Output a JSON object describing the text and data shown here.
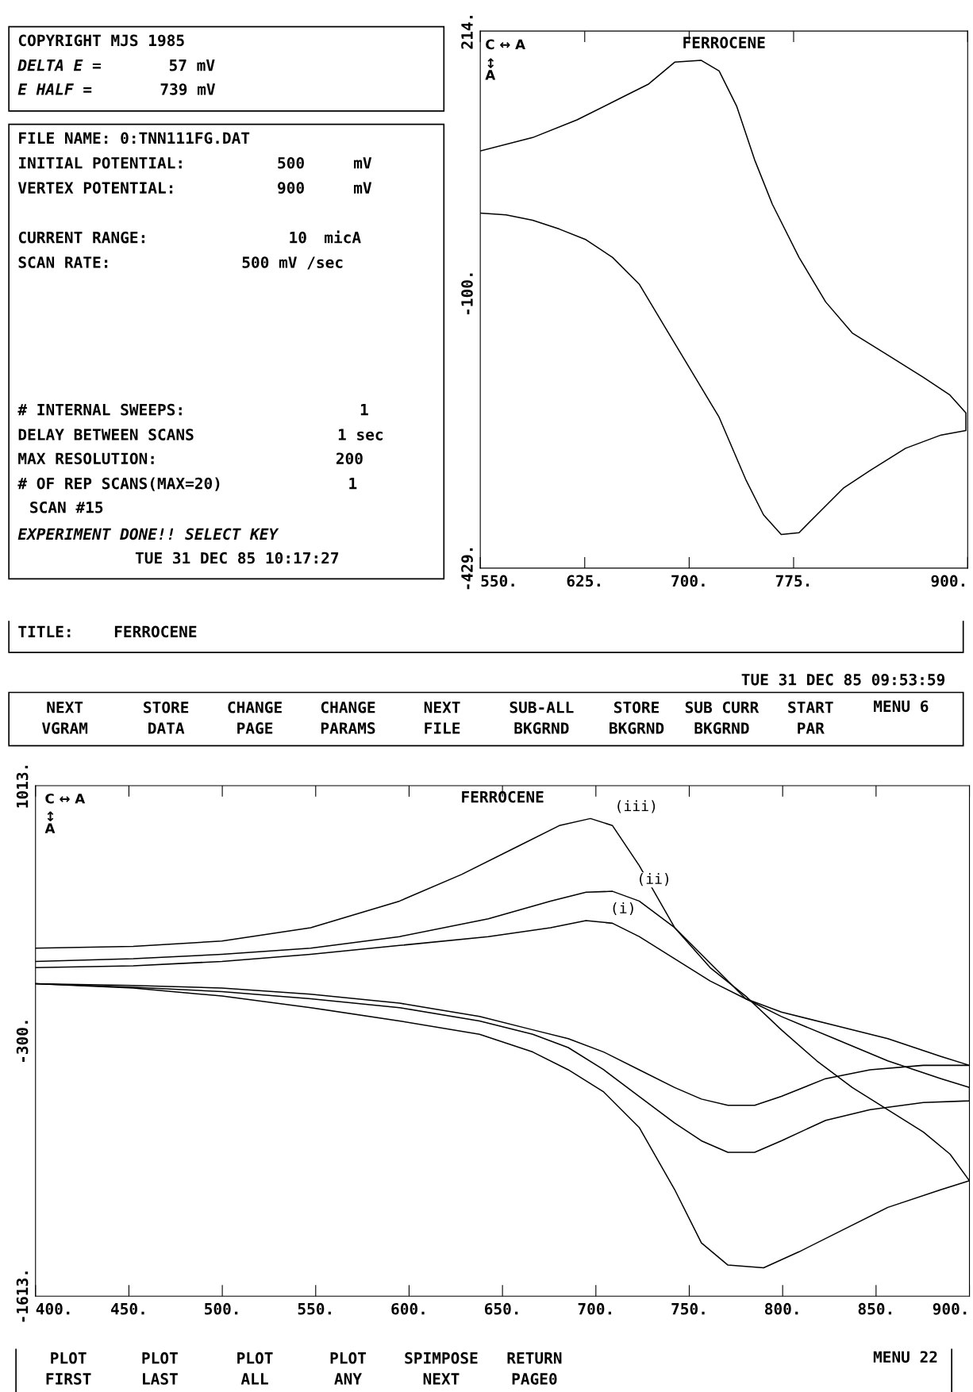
{
  "chart_data": [
    {
      "type": "other",
      "annotations": [
        "COPYRIGHT MJS 1985",
        "DELTA E =",
        "57 mV",
        "E HALF =",
        "739 mV"
      ]
    },
    {
      "type": "line",
      "title": "FERROCENE",
      "annotations": [
        "C ↔ A",
        "↕\nA"
      ],
      "xlim": [
        550,
        900
      ],
      "ylim": [
        -429,
        214
      ],
      "xticks": [
        {
          "value": 550,
          "label": "550."
        },
        {
          "value": 625,
          "label": "625."
        },
        {
          "value": 700,
          "label": "700."
        },
        {
          "value": 775,
          "label": "775."
        },
        {
          "value": 900,
          "label": "900."
        }
      ],
      "yticks": [
        {
          "value": -429,
          "label": "-429."
        },
        {
          "value": -100,
          "label": "-100."
        },
        {
          "value": 214,
          "label": "214."
        }
      ],
      "series": [
        {
          "color": "#000000",
          "x": [
            550,
            587.6,
            619.5,
            651.4,
            670.5,
            689.6,
            708.7,
            721.5,
            734.2,
            747,
            759.7,
            778.9,
            798,
            817.1,
            842.6,
            868.1,
            887.2,
            898.7,
            898.7,
            880.9,
            855.4,
            829.9,
            810.7,
            791.6,
            778.9,
            766.1,
            753.4,
            740.6,
            721.5,
            702.4,
            683.2,
            664.1,
            645,
            625.9,
            606.7,
            587.6,
            568.5,
            550
          ],
          "values": [
            70.5,
            86.5,
            107.7,
            134.3,
            150.2,
            176.8,
            178.9,
            166.2,
            123.7,
            59.9,
            6.8,
            -57,
            -110.2,
            -147.4,
            -173.9,
            -200.5,
            -221.7,
            -243,
            -264.3,
            -269.6,
            -285.5,
            -312.1,
            -333.3,
            -365.2,
            -386.5,
            -388.6,
            -365.2,
            -322.7,
            -248.3,
            -195.2,
            -142,
            -88.9,
            -57,
            -35.8,
            -23,
            -12.4,
            -6,
            -3.9
          ]
        }
      ]
    },
    {
      "type": "other",
      "annotations": [
        "FILE NAME: 0:TNN111FG.DAT",
        "INITIAL POTENTIAL:",
        "500",
        "mV",
        "VERTEX POTENTIAL:",
        "900",
        "mV",
        "CURRENT RANGE:",
        "10",
        "micA",
        "SCAN RATE:",
        "500 mV /sec",
        "# INTERNAL SWEEPS:",
        "1",
        "DELAY BETWEEN SCANS",
        "1 sec",
        "MAX RESOLUTION:",
        "200",
        "# OF REP SCANS(MAX=20)",
        "1",
        "SCAN #15",
        "EXPERIMENT DONE!! SELECT KEY",
        "TUE 31 DEC 85 10:17:27"
      ]
    },
    {
      "type": "other",
      "annotations": [
        "TITLE:",
        "FERROCENE"
      ]
    },
    {
      "type": "other",
      "annotations": [
        "TUE 31 DEC 85 09:53:59",
        "NEXT\nVGRAM",
        "STORE\nDATA",
        "CHANGE\nPAGE",
        "CHANGE\nPARAMS",
        "NEXT\nFILE",
        "SUB-ALL\nBKGRND",
        "STORE\nBKGRND",
        "SUB CURR\nBKGRND",
        "START\nPAR",
        "MENU 6"
      ]
    },
    {
      "type": "line",
      "title": "FERROCENE",
      "annotations": [
        "C ↔ A",
        "↕\nA"
      ],
      "xlim": [
        400,
        900
      ],
      "ylim": [
        -1613,
        1013
      ],
      "xticks": [
        {
          "value": 400,
          "label": "400."
        },
        {
          "value": 450,
          "label": "450."
        },
        {
          "value": 500,
          "label": "500."
        },
        {
          "value": 550,
          "label": "550."
        },
        {
          "value": 600,
          "label": "600."
        },
        {
          "value": 650,
          "label": "650."
        },
        {
          "value": 700,
          "label": "700."
        },
        {
          "value": 750,
          "label": "750."
        },
        {
          "value": 800,
          "label": "800."
        },
        {
          "value": 850,
          "label": "850."
        },
        {
          "value": 900,
          "label": "900."
        }
      ],
      "yticks": [
        {
          "value": -1613,
          "label": "-1613."
        },
        {
          "value": -300,
          "label": "-300."
        },
        {
          "value": 1013,
          "label": "1013."
        }
      ],
      "series": [
        {
          "name": "(iii)",
          "color": "#000000",
          "x": [
            400,
            452.3,
            499.8,
            547.3,
            594.9,
            628.1,
            656.7,
            680.4,
            697.1,
            708.9,
            723.2,
            742.2,
            761.2,
            780.2,
            799.3,
            818.3,
            837.3,
            856.3,
            875.3,
            889.6,
            900,
            884.8,
            856.3,
            832.5,
            808.8,
            789.8,
            770.7,
            756.5,
            742.2,
            723.2,
            704.2,
            685.2,
            666.2,
            637.7,
            594.9,
            547.3,
            499.8,
            452.3,
            400
          ],
          "values": [
            177.3,
            186.4,
            213.8,
            282.3,
            419.3,
            556.3,
            693.3,
            807.5,
            844,
            807.5,
            602,
            282.3,
            76.8,
            -69.4,
            -243,
            -402.8,
            -539.9,
            -654.1,
            -768.3,
            -882.5,
            -1019.5,
            -1065.2,
            -1156.5,
            -1270.7,
            -1384.9,
            -1467.1,
            -1453.4,
            -1339.2,
            -1065.2,
            -745.4,
            -562.7,
            -448.5,
            -357.2,
            -265.8,
            -197.3,
            -128.8,
            -69.4,
            -28.3,
            -5.4
          ]
        },
        {
          "name": "(ii)",
          "color": "#000000",
          "x": [
            400,
            452.3,
            499.8,
            547.3,
            594.9,
            642.4,
            675.7,
            694.7,
            708.9,
            723.2,
            742.2,
            761.2,
            780.2,
            799.3,
            827.8,
            856.3,
            884.8,
            900,
            900,
            875.3,
            846.8,
            823,
            799.3,
            785,
            770.7,
            756.5,
            742.2,
            723.2,
            704.2,
            685.2,
            666.2,
            637.7,
            594.9,
            547.3,
            499.8,
            452.3,
            400
          ],
          "values": [
            108.8,
            122.5,
            145.3,
            177.3,
            236.6,
            328,
            419.3,
            465,
            469.5,
            419.3,
            282.3,
            99.6,
            -83.1,
            -174.5,
            -288.7,
            -402.8,
            -494.2,
            -539.9,
            -608.4,
            -617.5,
            -654.1,
            -708.9,
            -814,
            -873.3,
            -873.3,
            -814,
            -722.6,
            -585.5,
            -448.5,
            -334.3,
            -265.8,
            -197.3,
            -128.8,
            -83.1,
            -46.5,
            -23.7,
            -5.4
          ]
        },
        {
          "name": "(i)",
          "color": "#000000",
          "x": [
            400,
            452.3,
            499.8,
            547.3,
            594.9,
            642.4,
            675.7,
            694.7,
            708.9,
            723.2,
            742.2,
            761.2,
            780.2,
            799.3,
            827.8,
            856.3,
            884.8,
            900,
            875.3,
            846.8,
            823,
            799.3,
            785,
            770.7,
            756.5,
            742.2,
            723.2,
            704.2,
            685.2,
            666.2,
            637.7,
            594.9,
            547.3,
            499.8,
            452.3,
            400
          ],
          "values": [
            76.8,
            85.9,
            108.8,
            145.3,
            190.9,
            236.6,
            282.3,
            318.8,
            305.1,
            236.6,
            122.5,
            8.3,
            -83.1,
            -151.6,
            -220.1,
            -288.7,
            -380,
            -425.7,
            -425.7,
            -448.5,
            -494.2,
            -585.5,
            -631.2,
            -631.2,
            -599.2,
            -539.9,
            -448.5,
            -357.2,
            -288.7,
            -243,
            -174.5,
            -105.9,
            -60.2,
            -28.3,
            -14.6,
            -5.4
          ]
        }
      ]
    },
    {
      "type": "other",
      "annotations": [
        "PLOT\nFIRST",
        "PLOT\nLAST",
        "PLOT\nALL",
        "PLOT\nANY",
        "SPIMPOSE\nNEXT",
        "RETURN\nPAGE0",
        "MENU 22"
      ]
    }
  ]
}
